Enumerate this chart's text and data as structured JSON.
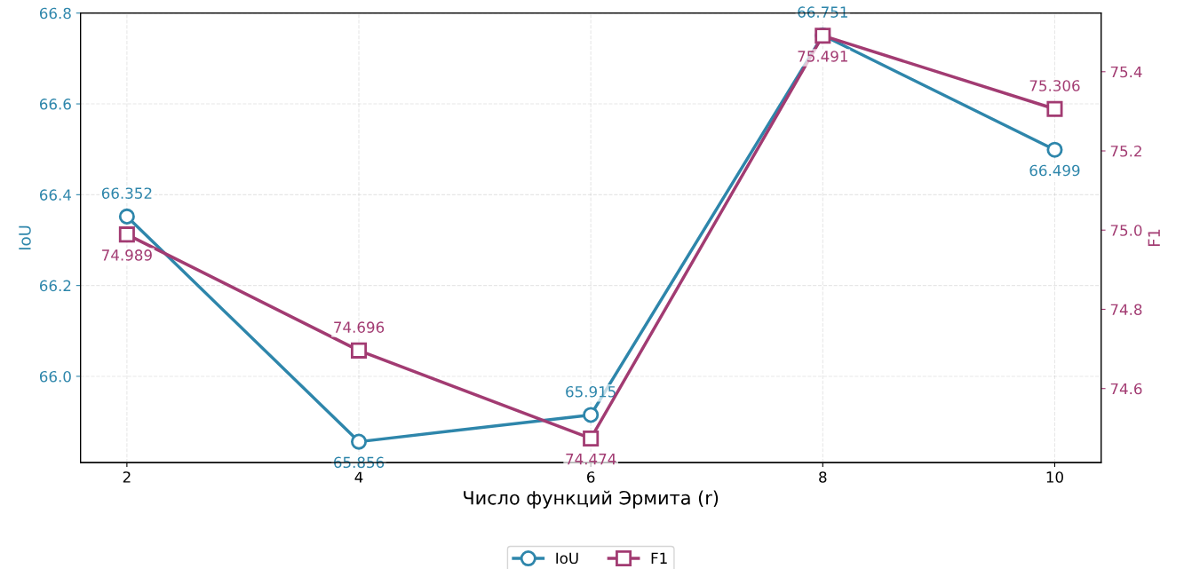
{
  "chart_data": {
    "type": "line",
    "xlabel": "Число функций Эрмита (r)",
    "ylabel": "IoU",
    "y2label": "F1",
    "x": [
      2,
      4,
      6,
      8,
      10
    ],
    "series": [
      {
        "name": "IoU",
        "color": "#2e86ab",
        "marker": "circle",
        "values": [
          66.352,
          65.856,
          65.915,
          66.751,
          66.499
        ]
      },
      {
        "name": "F1",
        "color": "#a23b72",
        "marker": "square",
        "axis": "y2",
        "values": [
          74.989,
          74.696,
          74.474,
          75.491,
          75.306
        ]
      }
    ],
    "xlim": [
      1.6,
      10.4
    ],
    "xticks": [
      2,
      4,
      6,
      8,
      10
    ],
    "ylim": [
      65.81,
      66.8
    ],
    "yticks": [
      {
        "value": 66.0,
        "label": "66.0"
      },
      66.2,
      66.4,
      66.6,
      66.8
    ],
    "y2lim": [
      74.413,
      75.548
    ],
    "y2ticks": [
      74.6,
      74.8,
      {
        "value": 75.0,
        "label": "75.0"
      },
      75.2,
      75.4
    ],
    "grid": true,
    "legend": "bottom",
    "data_labels": true,
    "line_style": "solid"
  }
}
